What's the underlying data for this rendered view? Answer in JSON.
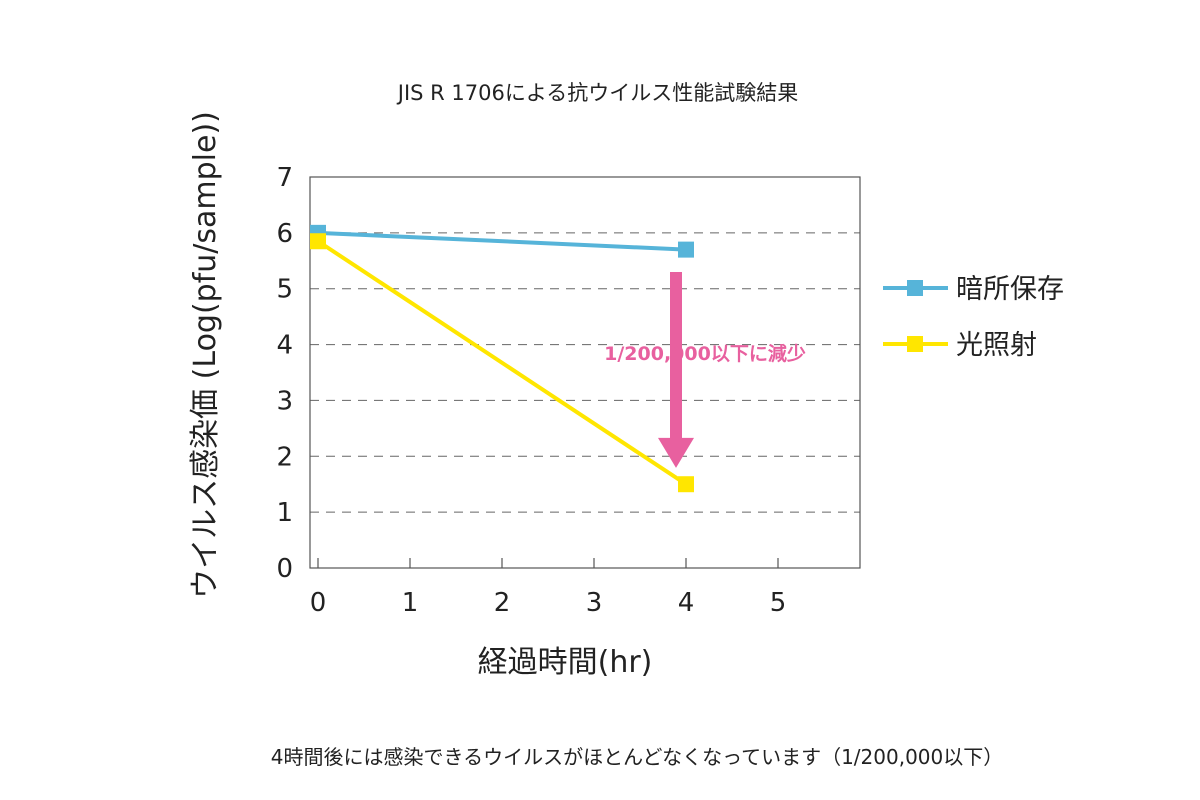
{
  "chart_data": {
    "type": "line",
    "title": "JIS R 1706による抗ウイルス性能試験結果",
    "xlabel": "経過時間(hr)",
    "ylabel": "ウイルス感染価 (Log(pfu/sample))",
    "xlim": [
      0,
      6
    ],
    "ylim": [
      0,
      7
    ],
    "xticks": [
      "0",
      "1",
      "2",
      "3",
      "4",
      "5"
    ],
    "yticks": [
      "0",
      "1",
      "2",
      "3",
      "4",
      "5",
      "6",
      "7"
    ],
    "grid": "horizontal dashed",
    "legend_position": "right",
    "series": [
      {
        "name": "暗所保存",
        "color": "#56b4d9",
        "x": [
          0,
          4
        ],
        "y": [
          6.0,
          5.7
        ]
      },
      {
        "name": "光照射",
        "color": "#ffe600",
        "x": [
          0,
          4
        ],
        "y": [
          5.85,
          1.5
        ]
      }
    ],
    "annotation": {
      "text": "1/200,000以下に減少",
      "color": "#e8609f",
      "x": 4,
      "y_from": 5.3,
      "y_to": 1.9
    }
  },
  "footnote": "4時間後には感染できるウイルスがほとんどなくなっています（1/200,000以下）"
}
